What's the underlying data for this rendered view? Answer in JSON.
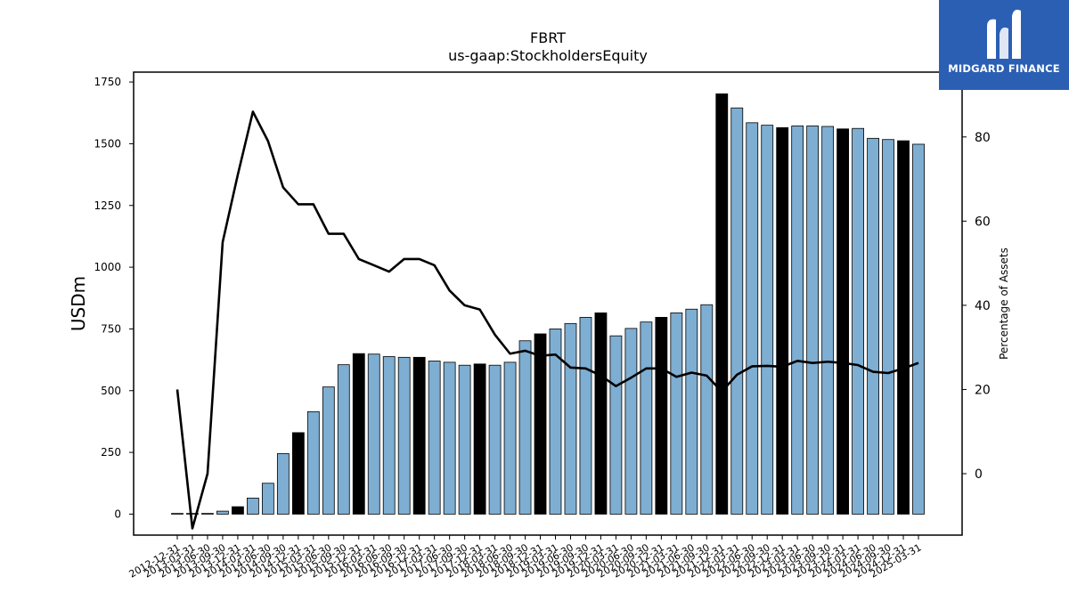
{
  "brand": {
    "name": "MIDGARD FINANCE"
  },
  "chart_data": {
    "type": "bar",
    "title": "FBRT",
    "subtitle": "us-gaap:StockholdersEquity",
    "ylabel": "USDm",
    "y2label": "Percentage of Assets",
    "ylim": [
      -85,
      1790
    ],
    "y2lim": [
      -14.6,
      95.4
    ],
    "yticks": [
      0,
      250,
      500,
      750,
      1000,
      1250,
      1500,
      1750
    ],
    "y2ticks": [
      0,
      20,
      40,
      60,
      80
    ],
    "colors": {
      "bar": "#7eaed2",
      "bar_highlight": "#000000",
      "line": "#000000"
    },
    "categories": [
      "2012-12-31",
      "2013-03-31",
      "2013-06-30",
      "2013-09-30",
      "2013-12-31",
      "2014-03-31",
      "2014-06-30",
      "2014-09-30",
      "2014-12-31",
      "2015-03-31",
      "2015-06-30",
      "2015-09-30",
      "2015-12-31",
      "2016-03-31",
      "2016-06-30",
      "2016-09-30",
      "2016-12-31",
      "2017-03-31",
      "2017-06-30",
      "2017-09-30",
      "2017-12-31",
      "2018-03-31",
      "2018-06-30",
      "2018-09-30",
      "2018-12-31",
      "2019-03-31",
      "2019-06-30",
      "2019-09-30",
      "2019-12-31",
      "2020-03-31",
      "2020-06-30",
      "2020-09-30",
      "2020-12-31",
      "2021-03-31",
      "2021-06-30",
      "2021-09-30",
      "2021-12-31",
      "2022-03-31",
      "2022-06-30",
      "2022-09-30",
      "2022-12-31",
      "2023-03-31",
      "2023-06-30",
      "2023-09-30",
      "2023-12-31",
      "2024-03-31",
      "2024-06-30",
      "2024-09-30",
      "2024-12-31",
      "2025-03-31"
    ],
    "series": [
      {
        "kind": "bar",
        "values": [
          0,
          1,
          2,
          12,
          30,
          65,
          125,
          245,
          330,
          415,
          515,
          605,
          650,
          648,
          638,
          635,
          635,
          620,
          615,
          603,
          608,
          603,
          615,
          702,
          730,
          750,
          772,
          797,
          815,
          722,
          752,
          778,
          797,
          815,
          830,
          848,
          1702,
          1645,
          1585,
          1575,
          1565,
          1572,
          1572,
          1570,
          1560,
          1562,
          1522,
          1517,
          1512,
          1498
        ],
        "highlighted": [
          false,
          false,
          false,
          false,
          true,
          false,
          false,
          false,
          true,
          false,
          false,
          false,
          true,
          false,
          false,
          false,
          true,
          false,
          false,
          false,
          true,
          false,
          false,
          false,
          true,
          false,
          false,
          false,
          true,
          false,
          false,
          false,
          true,
          false,
          false,
          false,
          true,
          false,
          false,
          false,
          true,
          false,
          false,
          false,
          true,
          false,
          false,
          false,
          true,
          false
        ]
      },
      {
        "kind": "line",
        "axis": "right",
        "values": [
          20,
          -13,
          0,
          55,
          71,
          86,
          79,
          68,
          64,
          64,
          57,
          57,
          51,
          49.5,
          48,
          51,
          51,
          49.5,
          43.5,
          40,
          39,
          33,
          28.5,
          29.2,
          28,
          28.3,
          25.2,
          25,
          23.3,
          20.8,
          22.8,
          25,
          25,
          23,
          24,
          23.3,
          19.5,
          23.5,
          25.5,
          25.6,
          25.4,
          26.8,
          26.3,
          26.6,
          26.3,
          25.8,
          24.2,
          23.9,
          25,
          26.3
        ]
      }
    ]
  }
}
